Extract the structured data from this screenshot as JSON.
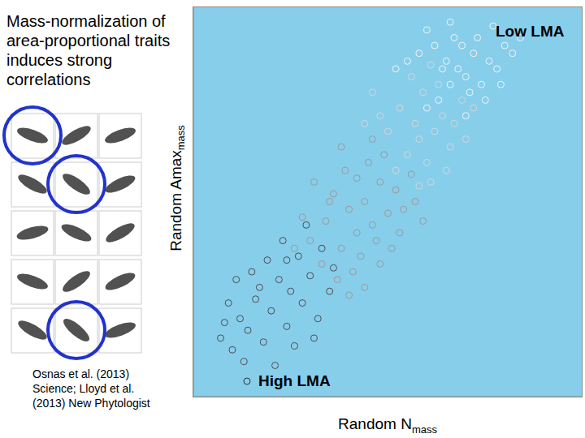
{
  "chart_data": {
    "type": "scatter",
    "title": "Mass-normalization of area-proportional traits induces strong correlations",
    "xlabel": {
      "text": "Random N",
      "subscript": "mass"
    },
    "ylabel": {
      "text": "Random Amax",
      "subscript": "mass"
    },
    "annotations": [
      "Low LMA",
      "High LMA"
    ],
    "source": "Osnas et al. (2013) Science; Lloyd et al. (2013) New Phytologist",
    "xlim": [
      0,
      100
    ],
    "ylim": [
      0,
      100
    ],
    "xticks": [],
    "yticks": [],
    "tick_labels": false,
    "grid": false,
    "series": [
      {
        "color": "#4d4d4d",
        "marker": "circle",
        "values": [
          [
            7,
            15
          ],
          [
            10,
            12
          ],
          [
            12,
            20
          ],
          [
            14,
            17
          ],
          [
            9,
            24
          ],
          [
            16,
            25
          ],
          [
            18,
            14
          ],
          [
            20,
            22
          ],
          [
            22,
            30
          ],
          [
            15,
            32
          ],
          [
            24,
            18
          ],
          [
            25,
            27
          ],
          [
            28,
            24
          ],
          [
            19,
            35
          ],
          [
            27,
            36
          ],
          [
            30,
            31
          ],
          [
            13,
            9
          ],
          [
            32,
            20
          ],
          [
            23,
            40
          ],
          [
            29,
            44
          ],
          [
            35,
            27
          ],
          [
            17,
            28
          ],
          [
            11,
            30
          ],
          [
            26,
            13
          ],
          [
            21,
            8
          ],
          [
            33,
            38
          ],
          [
            8,
            19
          ],
          [
            31,
            15
          ],
          [
            36,
            33
          ],
          [
            24,
            35
          ]
        ]
      },
      {
        "color": "#9a9a9a",
        "marker": "circle",
        "values": [
          [
            30,
            40
          ],
          [
            34,
            45
          ],
          [
            38,
            38
          ],
          [
            40,
            48
          ],
          [
            42,
            42
          ],
          [
            36,
            52
          ],
          [
            44,
            50
          ],
          [
            46,
            44
          ],
          [
            48,
            55
          ],
          [
            33,
            34
          ],
          [
            39,
            58
          ],
          [
            43,
            36
          ],
          [
            50,
            47
          ],
          [
            52,
            53
          ],
          [
            37,
            30
          ],
          [
            45,
            60
          ],
          [
            41,
            32
          ],
          [
            47,
            40
          ],
          [
            54,
            48
          ],
          [
            35,
            50
          ],
          [
            49,
            62
          ],
          [
            28,
            46
          ],
          [
            53,
            42
          ],
          [
            56,
            57
          ],
          [
            40,
            26
          ],
          [
            31,
            55
          ],
          [
            57,
            50
          ],
          [
            44,
            28
          ],
          [
            38,
            64
          ],
          [
            51,
            38
          ],
          [
            46,
            66
          ],
          [
            59,
            45
          ],
          [
            26,
            38
          ],
          [
            42,
            56
          ],
          [
            48,
            34
          ]
        ]
      },
      {
        "color": "#d6d6d6",
        "marker": "circle",
        "values": [
          [
            52,
            58
          ],
          [
            55,
            62
          ],
          [
            58,
            66
          ],
          [
            60,
            60
          ],
          [
            57,
            70
          ],
          [
            62,
            68
          ],
          [
            64,
            72
          ],
          [
            50,
            68
          ],
          [
            61,
            55
          ],
          [
            66,
            64
          ],
          [
            53,
            74
          ],
          [
            59,
            78
          ],
          [
            63,
            80
          ],
          [
            67,
            70
          ],
          [
            69,
            76
          ],
          [
            48,
            72
          ],
          [
            65,
            58
          ],
          [
            56,
            82
          ],
          [
            70,
            66
          ],
          [
            44,
            70
          ],
          [
            58,
            54
          ],
          [
            72,
            74
          ],
          [
            46,
            78
          ],
          [
            61,
            85
          ]
        ]
      },
      {
        "color": "#f4f4f4",
        "marker": "circle",
        "values": [
          [
            60,
            74
          ],
          [
            63,
            76
          ],
          [
            66,
            80
          ],
          [
            68,
            84
          ],
          [
            65,
            86
          ],
          [
            70,
            82
          ],
          [
            72,
            88
          ],
          [
            62,
            90
          ],
          [
            74,
            80
          ],
          [
            67,
            92
          ],
          [
            58,
            88
          ],
          [
            76,
            86
          ],
          [
            64,
            84
          ],
          [
            69,
            90
          ],
          [
            71,
            78
          ],
          [
            78,
            84
          ],
          [
            55,
            86
          ],
          [
            73,
            92
          ],
          [
            75,
            76
          ],
          [
            80,
            90
          ],
          [
            60,
            94
          ],
          [
            77,
            95
          ],
          [
            82,
            88
          ],
          [
            66,
            96
          ],
          [
            70,
            72
          ],
          [
            84,
            92
          ],
          [
            52,
            84
          ],
          [
            79,
            80
          ]
        ]
      }
    ]
  }
}
